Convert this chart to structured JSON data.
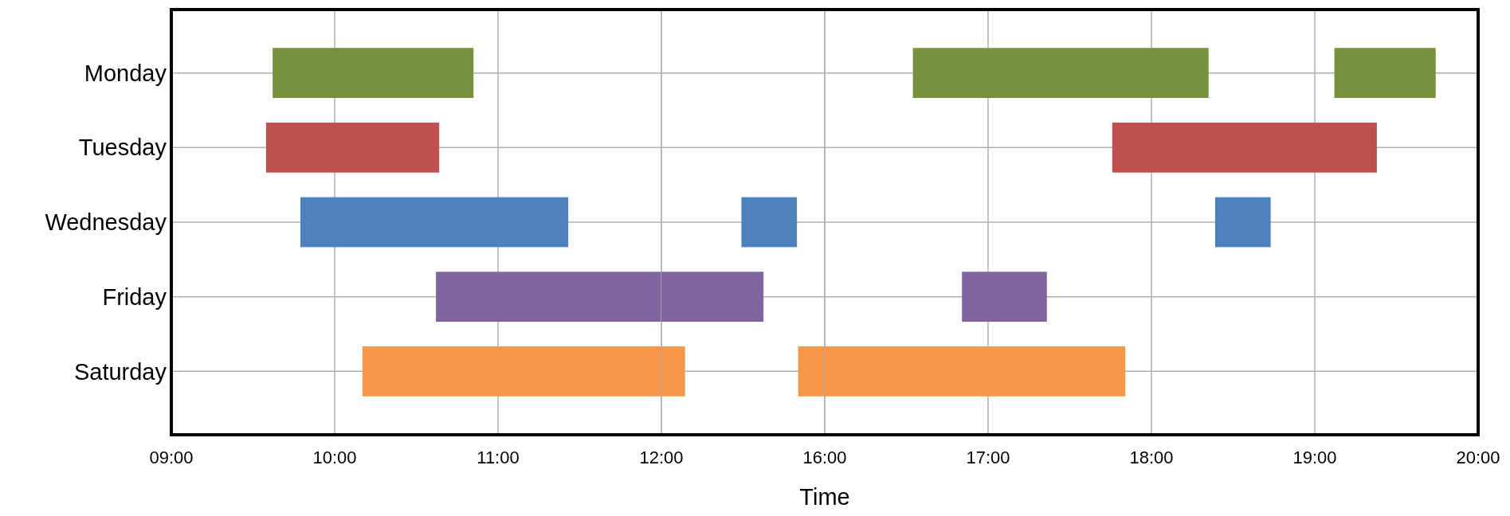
{
  "chart_data": [
    {
      "type": "bar",
      "orientation": "horizontal",
      "categories": [
        "Monday",
        "Tuesday",
        "Wednesday",
        "Friday",
        "Saturday"
      ],
      "series": [
        {
          "base": [
            9.62,
            9.58,
            9.79,
            10.62,
            10.17
          ],
          "values": [
            1.23,
            1.06,
            1.64,
            1.38,
            1.83
          ],
          "colors": [
            "#76923c",
            "#c0504d",
            "#4f81bd",
            "#8064a2",
            "#f79646"
          ]
        }
      ],
      "xlim": [
        9,
        12
      ],
      "xticks": [
        {
          "value": 9,
          "label": "09:00"
        },
        {
          "value": 10,
          "label": "10:00"
        },
        {
          "value": 11,
          "label": "11:00"
        },
        {
          "value": 12,
          "label": null
        }
      ],
      "grid": true
    },
    {
      "type": "bar",
      "orientation": "horizontal",
      "xlabel": "Time",
      "categories": [
        null,
        null,
        null,
        null,
        null
      ],
      "series": [
        {
          "base": [
            null,
            null,
            13.96,
            12,
            12
          ],
          "values": [
            null,
            null,
            1.36,
            2.5,
            0.58
          ],
          "colors": [
            "#76923c",
            "#c0504d",
            "#4f81bd",
            "#8064a2",
            "#f79646"
          ]
        },
        {
          "base": [
            null,
            null,
            null,
            null,
            15.35
          ],
          "values": [
            null,
            null,
            null,
            null,
            0.65
          ],
          "colors": [
            "#76923c",
            "#c0504d",
            "#4f81bd",
            "#8064a2",
            "#f79646"
          ]
        }
      ],
      "xlim": [
        12,
        16
      ],
      "xticks": [
        {
          "value": 12,
          "label": "12:00"
        },
        {
          "value": 16,
          "label": "16:00"
        }
      ],
      "tick_labels": "x",
      "grid": true
    },
    {
      "type": "bar",
      "orientation": "horizontal",
      "categories": [
        null,
        null,
        null,
        null,
        null
      ],
      "series": [
        {
          "base": [
            16.54,
            17.76,
            18.39,
            16.84,
            16
          ],
          "values": [
            1.81,
            1.62,
            0.34,
            0.52,
            1.84
          ],
          "colors": [
            "#76923c",
            "#c0504d",
            "#4f81bd",
            "#8064a2",
            "#f79646"
          ]
        },
        {
          "base": [
            19.12,
            null,
            null,
            null,
            null
          ],
          "values": [
            0.62,
            null,
            null,
            null,
            null
          ],
          "colors": [
            "#76923c",
            "#c0504d",
            "#4f81bd",
            "#8064a2",
            "#f79646"
          ]
        }
      ],
      "xlim": [
        16,
        20
      ],
      "xticks": [
        {
          "value": 16,
          "label": null
        },
        {
          "value": 17,
          "label": "17:00"
        },
        {
          "value": 18,
          "label": "18:00"
        },
        {
          "value": 19,
          "label": "19:00"
        },
        {
          "value": 20,
          "label": "20:00"
        }
      ],
      "tick_labels": "x",
      "grid": true
    }
  ]
}
